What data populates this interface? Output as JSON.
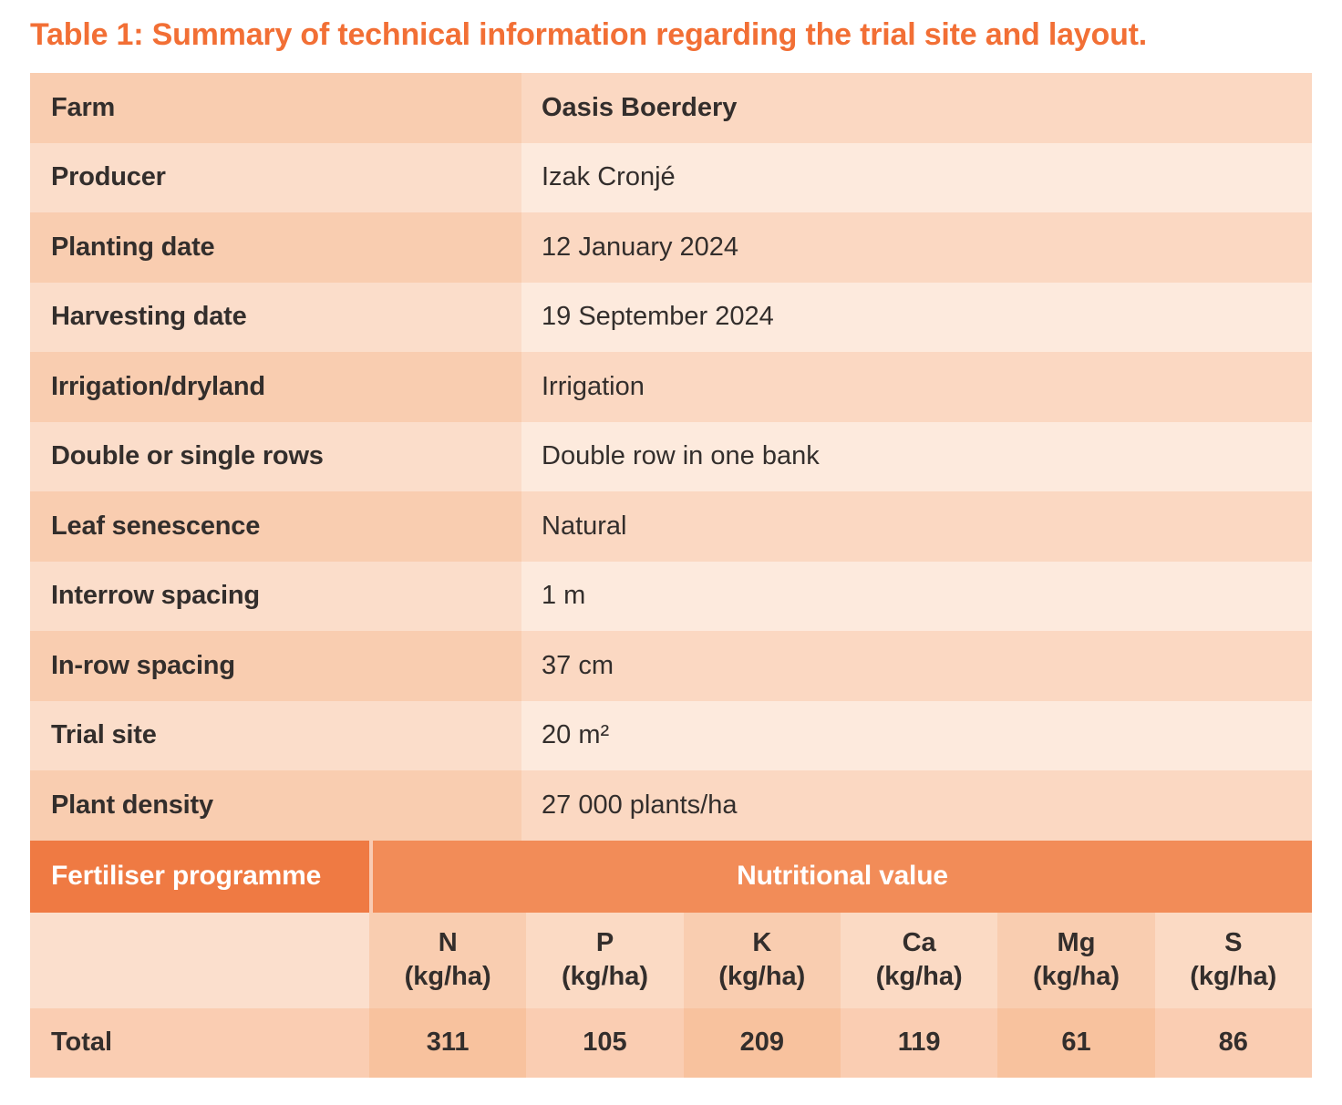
{
  "title": "Table 1: Summary of technical information regarding the trial site and layout.",
  "info_table": {
    "rows": [
      {
        "label": "Farm",
        "value": "Oasis Boerdery",
        "value_bold": true
      },
      {
        "label": "Producer",
        "value": "Izak Cronjé",
        "value_bold": false
      },
      {
        "label": "Planting date",
        "value": "12 January 2024",
        "value_bold": false
      },
      {
        "label": "Harvesting date",
        "value": "19 September 2024",
        "value_bold": false
      },
      {
        "label": "Irrigation/dryland",
        "value": "Irrigation",
        "value_bold": false
      },
      {
        "label": "Double or single rows",
        "value": "Double row in one bank",
        "value_bold": false
      },
      {
        "label": "Leaf senescence",
        "value": "Natural",
        "value_bold": false
      },
      {
        "label": "Interrow spacing",
        "value": "1 m",
        "value_bold": false
      },
      {
        "label": "In-row spacing",
        "value": "37 cm",
        "value_bold": false
      },
      {
        "label": "Trial site",
        "value": "20 m²",
        "value_bold": false
      },
      {
        "label": "Plant density",
        "value": "27 000 plants/ha",
        "value_bold": false
      }
    ]
  },
  "fertiliser_table": {
    "section_label": "Fertiliser programme",
    "section_value_header": "Nutritional value",
    "columns": [
      {
        "nutrient": "N",
        "unit": "(kg/ha)"
      },
      {
        "nutrient": "P",
        "unit": "(kg/ha)"
      },
      {
        "nutrient": "K",
        "unit": "(kg/ha)"
      },
      {
        "nutrient": "Ca",
        "unit": "(kg/ha)"
      },
      {
        "nutrient": "Mg",
        "unit": "(kg/ha)"
      },
      {
        "nutrient": "S",
        "unit": "(kg/ha)"
      }
    ],
    "total_row": {
      "label": "Total",
      "values": [
        "311",
        "105",
        "209",
        "119",
        "61",
        "86"
      ]
    }
  },
  "colors": {
    "title_orange": "#F26F35",
    "header_left_orange": "#EF7A43",
    "header_right_orange": "#F28C58",
    "row_odd_label": "#F9CDB0",
    "row_odd_value": "#FBD8C2",
    "row_even_label": "#FBDDCA",
    "row_even_value": "#FDEADD",
    "col_dark": "#F9CDB0",
    "col_light": "#FBDAC4",
    "colhdr_first": "#FBDFCD",
    "total_dark": "#F8C29E",
    "total_light": "#FACDB2",
    "text_dark": "#332E2C"
  }
}
